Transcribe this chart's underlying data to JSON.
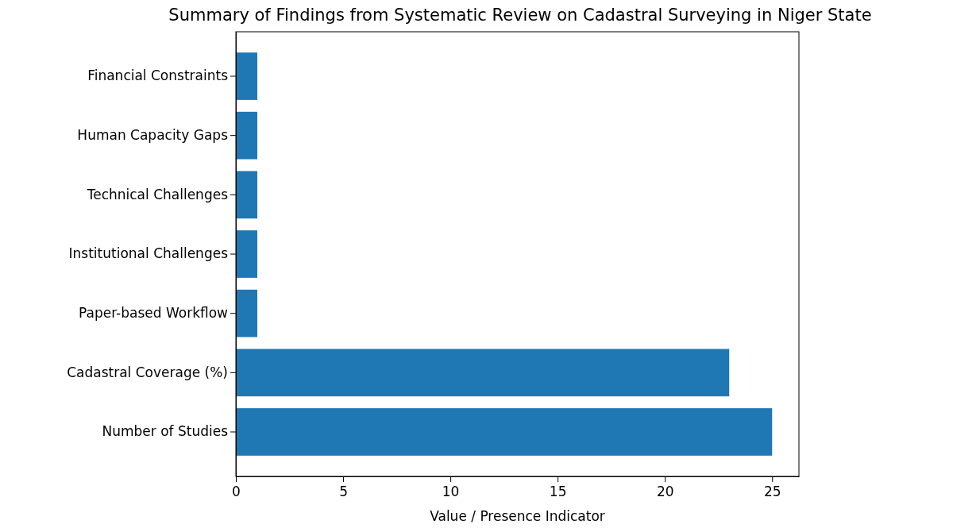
{
  "chart_data": {
    "type": "bar",
    "orientation": "horizontal",
    "title": "Summary of Findings from Systematic Review on Cadastral Surveying in Niger State",
    "xlabel": "Value / Presence Indicator",
    "categories": [
      "Financial Constraints",
      "Human Capacity Gaps",
      "Technical Challenges",
      "Institutional Challenges",
      "Paper-based Workflow",
      "Cadastral Coverage (%)",
      "Number of Studies"
    ],
    "values": [
      1,
      1,
      1,
      1,
      1,
      23,
      25
    ],
    "color": "#1f77b4",
    "xlim": [
      0,
      26.25
    ],
    "xticks": [
      0,
      5,
      10,
      15,
      20,
      25
    ],
    "grid": false
  }
}
